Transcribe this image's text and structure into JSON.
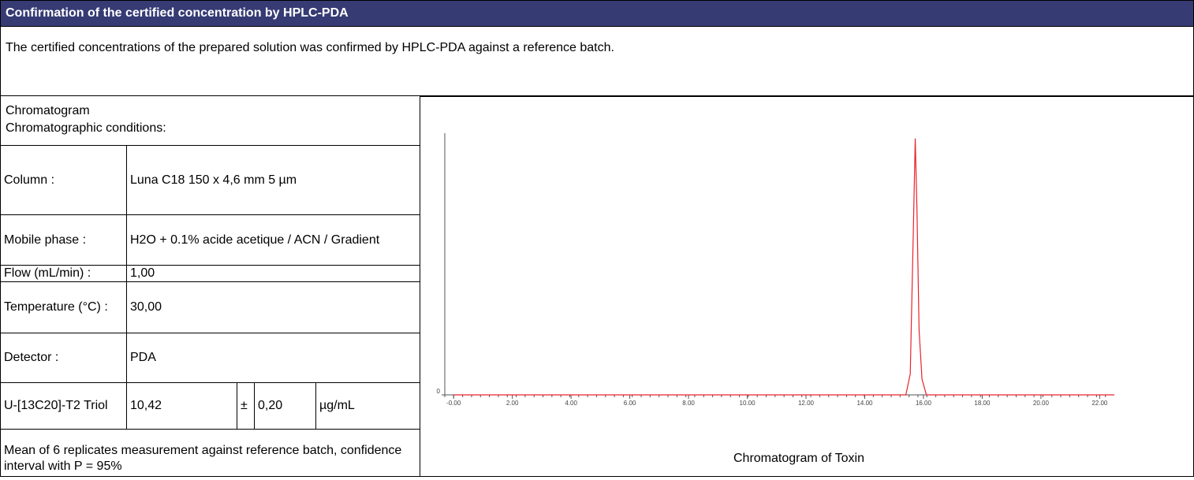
{
  "header": {
    "title": "Confirmation of the certified concentration by HPLC-PDA"
  },
  "intro": "The certified concentrations of the prepared solution was confirmed by HPLC-PDA against a reference batch.",
  "conditions": {
    "title": "Chromatogram",
    "subtitle": "Chromatographic conditions:"
  },
  "table": {
    "rows": [
      [
        "Column :",
        "Luna C18 150 x 4,6 mm 5 µm"
      ],
      [
        "Mobile phase :",
        "H2O + 0.1% acide acetique / ACN / Gradient"
      ],
      [
        "Flow (mL/min) :",
        "1,00"
      ],
      [
        "Temperature (°C) :",
        "30,00"
      ],
      [
        "Detector :",
        "PDA"
      ]
    ],
    "result": {
      "label": "U-[13C20]-T2 Triol",
      "value": "10,42",
      "pm": "±",
      "uncertainty": "0,20",
      "unit": "µg/mL"
    },
    "note": "Mean of 6 replicates measurement against reference batch, confidence interval with P = 95%"
  },
  "chart_data": {
    "type": "line",
    "caption": "Chromatogram of Toxin",
    "x": [
      0,
      15.4,
      15.55,
      15.65,
      15.72,
      15.78,
      15.85,
      15.95,
      16.1,
      22.5
    ],
    "series": [
      {
        "color": "#e8232a",
        "values": [
          0,
          0,
          8,
          60,
          98,
          70,
          25,
          6,
          0,
          0
        ]
      }
    ],
    "xlim": [
      -0.3,
      22.5
    ],
    "ylim": [
      0,
      100
    ],
    "xticks": [
      {
        "value": 0,
        "label": "-0.00"
      },
      {
        "value": 2,
        "label": "2.00"
      },
      {
        "value": 4,
        "label": "4.00"
      },
      {
        "value": 6,
        "label": "6.00"
      },
      {
        "value": 8,
        "label": "8.00"
      },
      {
        "value": 10,
        "label": "10.00"
      },
      {
        "value": 12,
        "label": "12.00"
      },
      {
        "value": 14,
        "label": "14.00"
      },
      {
        "value": 16,
        "label": "16.00"
      },
      {
        "value": 18,
        "label": "18.00"
      },
      {
        "value": 20,
        "label": "20.00"
      },
      {
        "value": 22,
        "label": "22.00"
      }
    ],
    "yticks": [
      0
    ]
  }
}
